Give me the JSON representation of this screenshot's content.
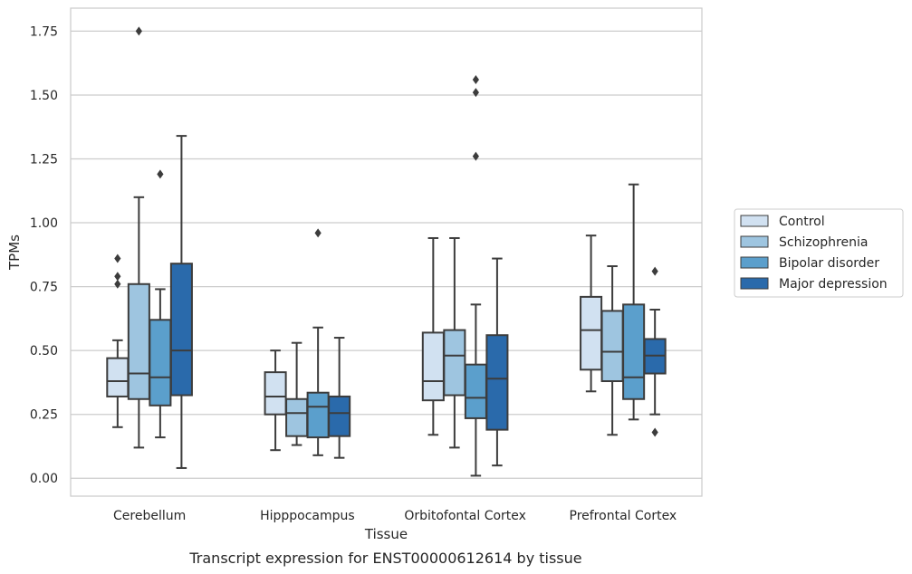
{
  "chart_data": {
    "type": "box",
    "xlabel": "Tissue",
    "ylabel": "TPMs",
    "caption": "Transcript expression for ENST00000612614 by tissue",
    "ylim": [
      -0.07,
      1.84
    ],
    "yticks": [
      "0.00",
      "0.25",
      "0.50",
      "0.75",
      "1.00",
      "1.25",
      "1.50",
      "1.75"
    ],
    "grid": "horizontal",
    "legend_position": "right",
    "categories": [
      "Cerebellum",
      "Hipppocampus",
      "Orbitofontal Cortex",
      "Prefrontal Cortex"
    ],
    "series": [
      {
        "name": "Control",
        "color": "#d1e1f1",
        "boxes": [
          {
            "q1": 0.32,
            "median": 0.38,
            "q3": 0.47,
            "whisker_low": 0.2,
            "whisker_high": 0.54,
            "outliers": [
              0.76,
              0.79,
              0.86
            ]
          },
          {
            "q1": 0.25,
            "median": 0.32,
            "q3": 0.415,
            "whisker_low": 0.11,
            "whisker_high": 0.5,
            "outliers": []
          },
          {
            "q1": 0.305,
            "median": 0.38,
            "q3": 0.57,
            "whisker_low": 0.17,
            "whisker_high": 0.94,
            "outliers": []
          },
          {
            "q1": 0.425,
            "median": 0.58,
            "q3": 0.71,
            "whisker_low": 0.34,
            "whisker_high": 0.95,
            "outliers": []
          }
        ]
      },
      {
        "name": "Schizophrenia",
        "color": "#9ec5e0",
        "boxes": [
          {
            "q1": 0.31,
            "median": 0.41,
            "q3": 0.76,
            "whisker_low": 0.12,
            "whisker_high": 1.1,
            "outliers": [
              1.75
            ]
          },
          {
            "q1": 0.165,
            "median": 0.255,
            "q3": 0.31,
            "whisker_low": 0.13,
            "whisker_high": 0.53,
            "outliers": []
          },
          {
            "q1": 0.325,
            "median": 0.48,
            "q3": 0.58,
            "whisker_low": 0.12,
            "whisker_high": 0.94,
            "outliers": []
          },
          {
            "q1": 0.38,
            "median": 0.495,
            "q3": 0.655,
            "whisker_low": 0.17,
            "whisker_high": 0.83,
            "outliers": []
          }
        ]
      },
      {
        "name": "Bipolar disorder",
        "color": "#5b9fcc",
        "boxes": [
          {
            "q1": 0.285,
            "median": 0.395,
            "q3": 0.62,
            "whisker_low": 0.16,
            "whisker_high": 0.74,
            "outliers": [
              1.19
            ]
          },
          {
            "q1": 0.16,
            "median": 0.28,
            "q3": 0.335,
            "whisker_low": 0.09,
            "whisker_high": 0.59,
            "outliers": [
              0.96
            ]
          },
          {
            "q1": 0.235,
            "median": 0.315,
            "q3": 0.445,
            "whisker_low": 0.01,
            "whisker_high": 0.68,
            "outliers": [
              1.26,
              1.51,
              1.56
            ]
          },
          {
            "q1": 0.31,
            "median": 0.395,
            "q3": 0.68,
            "whisker_low": 0.23,
            "whisker_high": 1.15,
            "outliers": []
          }
        ]
      },
      {
        "name": "Major depression",
        "color": "#2a6aab",
        "boxes": [
          {
            "q1": 0.325,
            "median": 0.5,
            "q3": 0.84,
            "whisker_low": 0.04,
            "whisker_high": 1.34,
            "outliers": []
          },
          {
            "q1": 0.165,
            "median": 0.255,
            "q3": 0.32,
            "whisker_low": 0.08,
            "whisker_high": 0.55,
            "outliers": []
          },
          {
            "q1": 0.19,
            "median": 0.39,
            "q3": 0.56,
            "whisker_low": 0.05,
            "whisker_high": 0.86,
            "outliers": []
          },
          {
            "q1": 0.41,
            "median": 0.48,
            "q3": 0.545,
            "whisker_low": 0.25,
            "whisker_high": 0.66,
            "outliers": [
              0.18,
              0.81
            ]
          }
        ]
      }
    ]
  }
}
